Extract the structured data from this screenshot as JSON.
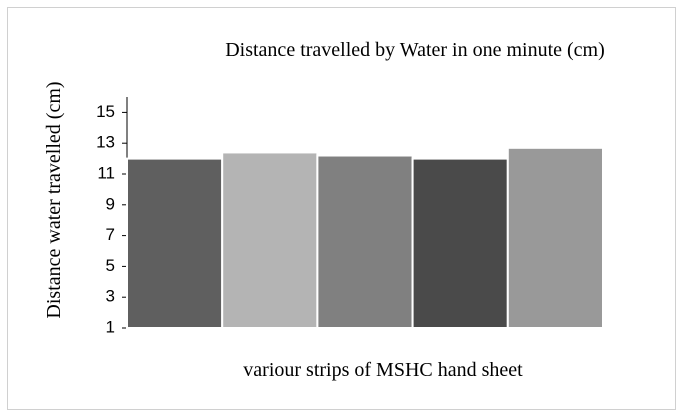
{
  "chart_data": {
    "type": "bar",
    "title": "Distance travelled by Water in one minute (cm)",
    "xlabel": "variour strips of MSHC hand sheet",
    "ylabel": "Distance water travelled (cm)",
    "categories": [
      null,
      null,
      null,
      null,
      null
    ],
    "values": [
      12.0,
      12.4,
      12.2,
      12.0,
      12.7
    ],
    "colors": [
      "#5f5f5f",
      "#b4b4b4",
      "#808080",
      "#4a4a4a",
      "#999999"
    ],
    "ylim": [
      1,
      16
    ],
    "yticks": [
      1,
      3,
      5,
      7,
      9,
      11,
      13,
      15
    ],
    "grid": false
  }
}
